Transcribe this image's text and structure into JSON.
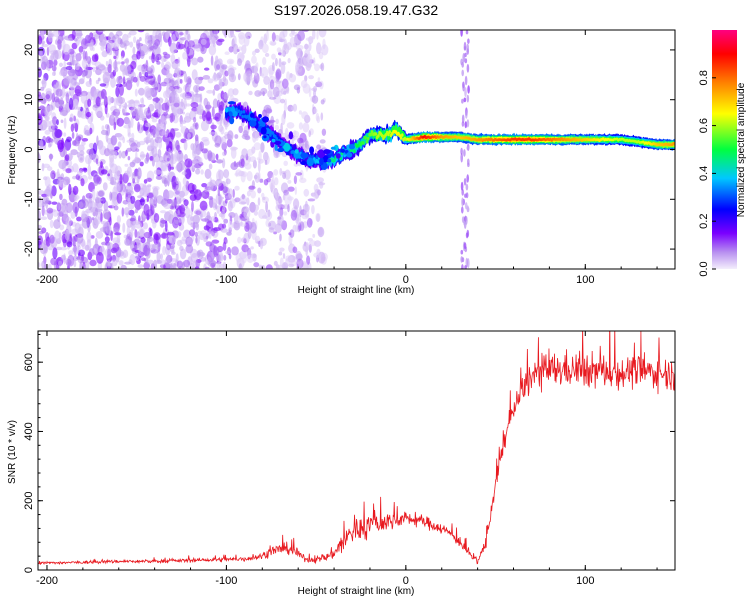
{
  "title": "S197.2026.058.19.47.G32",
  "chart_data": [
    {
      "type": "heatmap",
      "xlabel": "Height of straight line (km)",
      "ylabel": "Frequency (Hz)",
      "xlim": [
        -205,
        150
      ],
      "ylim": [
        -24,
        24
      ],
      "xticks": [
        -200,
        -100,
        0,
        100
      ],
      "yticks": [
        -20,
        -10,
        0,
        10,
        20
      ],
      "colorbar": {
        "label": "Normalized spectral amplitude",
        "range": [
          0,
          1
        ],
        "ticks": [
          "0.0",
          "0.2",
          "0.4",
          "0.6",
          "0.8"
        ],
        "colors": [
          "#f4eefc",
          "#7a00ff",
          "#0000ff",
          "#00c8ff",
          "#00ff40",
          "#ffff00",
          "#ff8000",
          "#ff0000",
          "#ff0080"
        ]
      },
      "ridge": {
        "x": [
          -100,
          -95,
          -85,
          -75,
          -65,
          -55,
          -50,
          -45,
          -40,
          -35,
          -30,
          -25,
          -20,
          -15,
          -10,
          -5,
          0,
          10,
          20,
          30,
          40,
          50,
          60,
          70,
          80,
          90,
          100,
          110,
          120,
          130,
          140,
          150
        ],
        "freq": [
          7,
          8,
          6,
          3,
          0,
          -2,
          -2,
          -2.5,
          -2,
          -1,
          0,
          1,
          3,
          3,
          3,
          4,
          2,
          2.5,
          2.5,
          2.5,
          2,
          2,
          2,
          2,
          2,
          2,
          2,
          2,
          2,
          1.5,
          1,
          1
        ],
        "amplitude": [
          0.25,
          0.3,
          0.3,
          0.3,
          0.3,
          0.35,
          0.35,
          0.4,
          0.45,
          0.45,
          0.45,
          0.5,
          0.55,
          0.6,
          0.6,
          0.65,
          0.6,
          0.9,
          0.75,
          0.7,
          0.75,
          0.8,
          0.85,
          0.85,
          0.8,
          0.75,
          0.7,
          0.65,
          0.6,
          0.6,
          0.7,
          0.75
        ]
      }
    },
    {
      "type": "line",
      "xlabel": "Height of straight line (km)",
      "ylabel": "SNR (10 * v/v)",
      "xlim": [
        -205,
        150
      ],
      "ylim": [
        0,
        690
      ],
      "xticks": [
        -200,
        -100,
        0,
        100
      ],
      "yticks": [
        0,
        200,
        400,
        600
      ],
      "series": [
        {
          "name": "SNR",
          "color": "#e8191f",
          "x": [
            -205,
            -180,
            -160,
            -140,
            -120,
            -100,
            -90,
            -80,
            -75,
            -70,
            -65,
            -60,
            -55,
            -50,
            -45,
            -40,
            -35,
            -30,
            -25,
            -20,
            -15,
            -10,
            -5,
            0,
            5,
            10,
            15,
            20,
            25,
            30,
            35,
            40,
            45,
            50,
            55,
            60,
            65,
            70,
            75,
            80,
            90,
            100,
            110,
            120,
            130,
            140,
            150
          ],
          "y": [
            20,
            22,
            25,
            25,
            28,
            30,
            32,
            40,
            55,
            60,
            62,
            45,
            30,
            30,
            35,
            50,
            80,
            110,
            120,
            130,
            135,
            140,
            145,
            150,
            145,
            140,
            130,
            120,
            105,
            80,
            50,
            20,
            90,
            250,
            380,
            460,
            520,
            560,
            570,
            575,
            580,
            575,
            575,
            570,
            575,
            570,
            565
          ],
          "noise": [
            4,
            5,
            5,
            5,
            6,
            7,
            8,
            10,
            15,
            18,
            18,
            12,
            8,
            10,
            12,
            20,
            40,
            40,
            40,
            40,
            35,
            30,
            25,
            20,
            20,
            20,
            18,
            18,
            15,
            15,
            15,
            8,
            25,
            30,
            35,
            40,
            45,
            50,
            55,
            55,
            55,
            55,
            55,
            50,
            50,
            50,
            50
          ]
        }
      ]
    }
  ]
}
